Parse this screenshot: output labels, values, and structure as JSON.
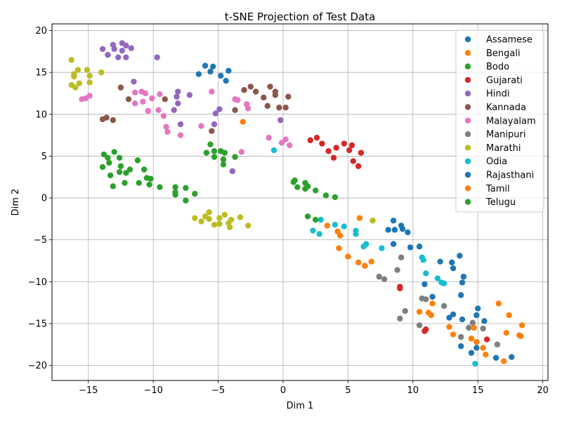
{
  "chart_data": {
    "type": "scatter",
    "title": "t-SNE Projection of Test Data",
    "xlabel": "Dim 1",
    "ylabel": "Dim 2",
    "xlim": [
      -17.8,
      20.4
    ],
    "ylim": [
      -21.8,
      20.8
    ],
    "xticks": [
      -15,
      -10,
      -5,
      0,
      5,
      10,
      15,
      20
    ],
    "yticks": [
      -20,
      -15,
      -10,
      -5,
      0,
      5,
      10,
      15,
      20
    ],
    "xtick_labels": [
      "−15",
      "−10",
      "−5",
      "0",
      "5",
      "10",
      "15",
      "20"
    ],
    "ytick_labels": [
      "−20",
      "−15",
      "−10",
      "−5",
      "0",
      "5",
      "10",
      "15",
      "20"
    ],
    "grid": true,
    "legend": "top-right",
    "series": [
      {
        "name": "Assamese",
        "color": "#1f77b4",
        "points": [
          [
            -6.5,
            14.8
          ],
          [
            -6.0,
            15.8
          ],
          [
            -5.6,
            15.1
          ],
          [
            -5.4,
            15.7
          ],
          [
            -4.8,
            14.6
          ],
          [
            -4.4,
            14.0
          ],
          [
            -4.2,
            15.2
          ]
        ]
      },
      {
        "name": "Bengali",
        "color": "#ff7f0e",
        "points": [
          [
            -3.1,
            9.1
          ],
          [
            3.4,
            -3.3
          ],
          [
            4.2,
            -4.0
          ],
          [
            4.4,
            -4.5
          ],
          [
            4.3,
            -6.0
          ],
          [
            5.0,
            -7.0
          ],
          [
            5.8,
            -7.7
          ],
          [
            6.3,
            -8.1
          ],
          [
            6.8,
            -7.6
          ],
          [
            5.9,
            -2.4
          ]
        ]
      },
      {
        "name": "Bodo",
        "color": "#2ca02c",
        "points": [
          [
            -13.8,
            5.2
          ],
          [
            -13.5,
            4.8
          ],
          [
            -13.4,
            4.2
          ],
          [
            -13.0,
            5.5
          ],
          [
            -12.6,
            4.8
          ],
          [
            -12.5,
            3.8
          ],
          [
            -13.9,
            3.7
          ],
          [
            -13.3,
            2.7
          ],
          [
            -12.6,
            3.1
          ],
          [
            -12.1,
            3.0
          ],
          [
            -11.2,
            4.5
          ],
          [
            -10.7,
            3.4
          ],
          [
            -10.5,
            2.4
          ],
          [
            -10.2,
            2.3
          ],
          [
            -13.1,
            1.4
          ],
          [
            -12.2,
            1.8
          ],
          [
            -11.1,
            1.8
          ],
          [
            -10.3,
            1.6
          ],
          [
            -9.5,
            1.3
          ],
          [
            -11.8,
            3.4
          ]
        ]
      },
      {
        "name": "Gujarati",
        "color": "#d62728",
        "points": [
          [
            2.1,
            6.9
          ],
          [
            2.6,
            7.2
          ],
          [
            3.0,
            6.5
          ],
          [
            3.5,
            5.6
          ],
          [
            4.1,
            6.0
          ],
          [
            4.7,
            6.5
          ],
          [
            5.1,
            5.7
          ],
          [
            5.3,
            6.3
          ],
          [
            3.9,
            4.8
          ],
          [
            5.4,
            4.4
          ],
          [
            5.8,
            3.8
          ],
          [
            6.0,
            5.4
          ],
          [
            9.0,
            -10.6
          ],
          [
            9.0,
            -10.8
          ],
          [
            11.0,
            -15.7
          ],
          [
            10.9,
            -15.9
          ],
          [
            15.7,
            -16.9
          ]
        ]
      },
      {
        "name": "Hindi",
        "color": "#9467bd",
        "points": [
          [
            -13.9,
            17.8
          ],
          [
            -13.1,
            18.3
          ],
          [
            -12.4,
            18.5
          ],
          [
            -12.1,
            18.2
          ],
          [
            -11.7,
            17.9
          ],
          [
            -13.0,
            17.8
          ],
          [
            -12.4,
            17.6
          ],
          [
            -13.5,
            17.1
          ],
          [
            -12.7,
            16.8
          ],
          [
            -12.1,
            16.8
          ],
          [
            -9.7,
            16.8
          ],
          [
            -11.5,
            13.9
          ],
          [
            -8.1,
            12.7
          ],
          [
            -8.2,
            12.1
          ],
          [
            -8.1,
            11.3
          ],
          [
            -7.2,
            12.3
          ],
          [
            -8.4,
            10.5
          ],
          [
            -5.2,
            10.1
          ],
          [
            -4.9,
            10.6
          ],
          [
            -5.3,
            8.8
          ],
          [
            -7.9,
            8.8
          ],
          [
            -3.9,
            3.2
          ],
          [
            -0.2,
            9.3
          ]
        ]
      },
      {
        "name": "Kannada",
        "color": "#8c564b",
        "points": [
          [
            -12.5,
            13.2
          ],
          [
            -11.9,
            11.8
          ],
          [
            -9.1,
            11.8
          ],
          [
            -13.9,
            9.4
          ],
          [
            -13.6,
            9.6
          ],
          [
            -13.1,
            9.3
          ],
          [
            -3.0,
            12.9
          ],
          [
            -2.5,
            13.3
          ],
          [
            -2.1,
            12.7
          ],
          [
            -1.5,
            12.0
          ],
          [
            -1.0,
            13.3
          ],
          [
            -0.6,
            12.3
          ],
          [
            -0.6,
            12.7
          ],
          [
            0.4,
            12.1
          ],
          [
            -1.2,
            11.0
          ],
          [
            -0.3,
            10.8
          ],
          [
            0.2,
            10.8
          ],
          [
            -3.7,
            10.5
          ],
          [
            -5.5,
            8.0
          ]
        ]
      },
      {
        "name": "Malayalam",
        "color": "#e377c2",
        "points": [
          [
            -15.5,
            11.8
          ],
          [
            -15.2,
            11.9
          ],
          [
            -14.9,
            12.2
          ],
          [
            -11.4,
            12.6
          ],
          [
            -10.9,
            12.7
          ],
          [
            -10.6,
            12.5
          ],
          [
            -10.1,
            11.9
          ],
          [
            -9.5,
            12.4
          ],
          [
            -11.4,
            11.3
          ],
          [
            -10.8,
            11.5
          ],
          [
            -10.4,
            10.4
          ],
          [
            -9.6,
            10.5
          ],
          [
            -9.2,
            9.8
          ],
          [
            -9.0,
            8.5
          ],
          [
            -8.9,
            7.9
          ],
          [
            -7.9,
            7.5
          ],
          [
            -6.3,
            8.6
          ],
          [
            -5.5,
            12.7
          ],
          [
            -3.7,
            11.8
          ],
          [
            -3.5,
            11.7
          ],
          [
            -2.7,
            10.7
          ],
          [
            -2.8,
            11.2
          ],
          [
            -1.1,
            7.2
          ],
          [
            0.2,
            7.0
          ],
          [
            0.5,
            6.3
          ],
          [
            -0.1,
            6.6
          ],
          [
            -3.2,
            5.5
          ]
        ]
      },
      {
        "name": "Manipuri",
        "color": "#7f7f7f",
        "points": [
          [
            9.1,
            -7.1
          ],
          [
            8.8,
            -8.6
          ],
          [
            7.4,
            -9.4
          ],
          [
            7.8,
            -9.7
          ],
          [
            10.7,
            -12.0
          ],
          [
            11.0,
            -12.1
          ],
          [
            12.4,
            -12.9
          ],
          [
            9.4,
            -13.5
          ],
          [
            9.0,
            -14.4
          ],
          [
            10.5,
            -15.2
          ],
          [
            14.6,
            -14.9
          ],
          [
            14.3,
            -15.5
          ],
          [
            15.4,
            -15.6
          ],
          [
            13.7,
            -16.6
          ],
          [
            16.5,
            -17.5
          ]
        ]
      },
      {
        "name": "Marathi",
        "color": "#bcbd22",
        "points": [
          [
            -16.3,
            16.5
          ],
          [
            -16.1,
            14.8
          ],
          [
            -16.1,
            14.5
          ],
          [
            -15.8,
            15.3
          ],
          [
            -15.1,
            15.3
          ],
          [
            -14.9,
            14.6
          ],
          [
            -14.9,
            13.8
          ],
          [
            -15.7,
            13.7
          ],
          [
            -16.3,
            13.5
          ],
          [
            -16.0,
            13.2
          ],
          [
            -14.0,
            15.0
          ],
          [
            -6.8,
            -2.4
          ],
          [
            -6.3,
            -2.8
          ],
          [
            -6.0,
            -2.2
          ],
          [
            -5.7,
            -1.7
          ],
          [
            -5.7,
            -2.5
          ],
          [
            -5.3,
            -3.2
          ],
          [
            -4.9,
            -3.1
          ],
          [
            -4.9,
            -2.4
          ],
          [
            -4.5,
            -2.0
          ],
          [
            -4.2,
            -3.0
          ],
          [
            -4.0,
            -2.6
          ],
          [
            -4.1,
            -3.5
          ],
          [
            -3.3,
            -2.3
          ],
          [
            -2.7,
            -3.3
          ],
          [
            6.9,
            -2.7
          ]
        ]
      },
      {
        "name": "Odia",
        "color": "#17becf",
        "points": [
          [
            -0.7,
            5.7
          ],
          [
            2.3,
            -3.9
          ],
          [
            2.9,
            -2.6
          ],
          [
            2.8,
            -4.3
          ],
          [
            4.0,
            -3.2
          ],
          [
            4.7,
            -3.4
          ],
          [
            5.6,
            -3.9
          ],
          [
            5.6,
            -4.3
          ],
          [
            6.2,
            -5.8
          ],
          [
            6.4,
            -5.5
          ],
          [
            7.6,
            -6.0
          ],
          [
            10.7,
            -7.1
          ],
          [
            10.8,
            -7.4
          ],
          [
            11.0,
            -9.0
          ],
          [
            11.9,
            -9.6
          ],
          [
            12.2,
            -10.1
          ],
          [
            12.4,
            -10.2
          ],
          [
            14.8,
            -19.8
          ]
        ]
      },
      {
        "name": "Rajasthani",
        "color": "#1f77b4",
        "points": [
          [
            8.1,
            -3.8
          ],
          [
            8.5,
            -2.7
          ],
          [
            8.6,
            -3.8
          ],
          [
            9.1,
            -3.3
          ],
          [
            9.2,
            -3.7
          ],
          [
            9.6,
            -4.1
          ],
          [
            9.8,
            -5.9
          ],
          [
            8.5,
            -5.5
          ],
          [
            10.5,
            -5.8
          ],
          [
            12.1,
            -7.6
          ],
          [
            13.0,
            -7.7
          ],
          [
            13.1,
            -8.4
          ],
          [
            13.6,
            -6.9
          ],
          [
            13.9,
            -9.4
          ],
          [
            13.8,
            -10.1
          ],
          [
            10.9,
            -10.3
          ],
          [
            11.5,
            -11.8
          ],
          [
            13.7,
            -11.6
          ],
          [
            13.1,
            -13.9
          ],
          [
            12.8,
            -14.3
          ],
          [
            13.8,
            -14.5
          ],
          [
            15.0,
            -13.2
          ],
          [
            14.9,
            -14.0
          ],
          [
            15.5,
            -14.7
          ],
          [
            13.7,
            -17.7
          ],
          [
            14.5,
            -18.5
          ],
          [
            14.9,
            -17.9
          ],
          [
            16.4,
            -19.1
          ],
          [
            17.6,
            -19.0
          ]
        ]
      },
      {
        "name": "Tamil",
        "color": "#ff7f0e",
        "points": [
          [
            10.5,
            -13.6
          ],
          [
            11.2,
            -13.7
          ],
          [
            11.4,
            -14.0
          ],
          [
            11.5,
            -12.6
          ],
          [
            12.8,
            -15.4
          ],
          [
            13.1,
            -16.3
          ],
          [
            14.7,
            -15.5
          ],
          [
            14.5,
            -16.8
          ],
          [
            14.9,
            -17.2
          ],
          [
            16.6,
            -12.6
          ],
          [
            17.4,
            -14.0
          ],
          [
            18.4,
            -15.2
          ],
          [
            17.2,
            -16.1
          ],
          [
            18.2,
            -16.4
          ],
          [
            18.3,
            -16.5
          ],
          [
            15.4,
            -17.9
          ],
          [
            15.6,
            -18.7
          ],
          [
            17.0,
            -19.5
          ]
        ]
      },
      {
        "name": "Telugu",
        "color": "#2ca02c",
        "points": [
          [
            -5.6,
            6.4
          ],
          [
            -5.9,
            5.4
          ],
          [
            -5.3,
            4.9
          ],
          [
            -5.3,
            5.6
          ],
          [
            -4.8,
            5.6
          ],
          [
            -4.5,
            5.4
          ],
          [
            -4.6,
            4.6
          ],
          [
            -4.6,
            4.0
          ],
          [
            -3.7,
            4.9
          ],
          [
            -8.3,
            1.3
          ],
          [
            -8.3,
            0.7
          ],
          [
            -8.3,
            0.4
          ],
          [
            -7.5,
            1.2
          ],
          [
            -6.8,
            0.5
          ],
          [
            -7.5,
            -0.3
          ],
          [
            0.8,
            1.9
          ],
          [
            0.9,
            2.1
          ],
          [
            1.1,
            1.3
          ],
          [
            1.7,
            1.8
          ],
          [
            1.7,
            1.1
          ],
          [
            1.9,
            1.4
          ],
          [
            2.5,
            0.9
          ],
          [
            3.3,
            0.3
          ],
          [
            4.0,
            0.1
          ],
          [
            1.9,
            -2.2
          ],
          [
            2.5,
            -2.6
          ]
        ]
      }
    ]
  }
}
